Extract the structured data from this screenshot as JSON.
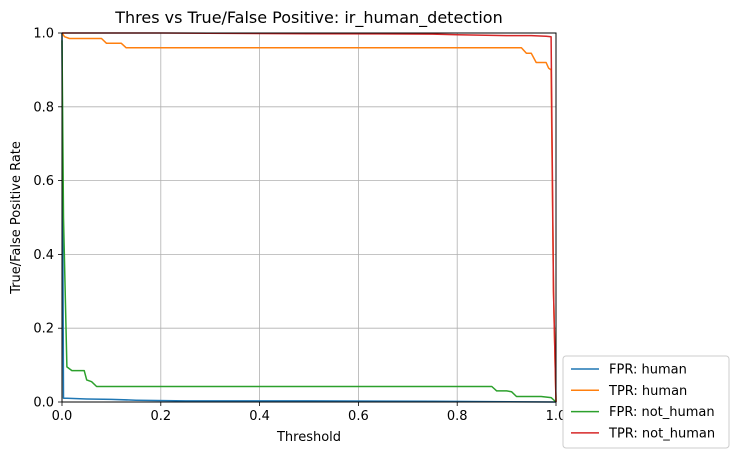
{
  "chart_data": {
    "type": "line",
    "title": "Thres vs True/False Positive: ir_human_detection",
    "xlabel": "Threshold",
    "ylabel": "True/False Positive Rate",
    "xlim": [
      0,
      1
    ],
    "ylim": [
      0,
      1
    ],
    "xticks": [
      "0.0",
      "0.2",
      "0.4",
      "0.6",
      "0.8",
      "1.0"
    ],
    "yticks": [
      "0.0",
      "0.2",
      "0.4",
      "0.6",
      "0.8",
      "1.0"
    ],
    "grid": true,
    "legend_position": "outside-lower-right",
    "series": [
      {
        "name": "FPR: human",
        "color": "#1f77b4",
        "x": [
          0.0,
          0.003,
          0.01,
          0.05,
          0.1,
          0.15,
          0.25,
          0.5,
          0.75,
          1.0
        ],
        "y": [
          1.0,
          0.01,
          0.01,
          0.008,
          0.007,
          0.005,
          0.003,
          0.003,
          0.002,
          0.0
        ]
      },
      {
        "name": "TPR: human",
        "color": "#ff7f0e",
        "x": [
          0.0,
          0.005,
          0.015,
          0.08,
          0.09,
          0.12,
          0.13,
          0.2,
          0.5,
          0.8,
          0.93,
          0.94,
          0.95,
          0.96,
          0.98,
          0.985,
          0.99,
          0.995,
          1.0
        ],
        "y": [
          1.0,
          0.99,
          0.985,
          0.985,
          0.972,
          0.972,
          0.96,
          0.96,
          0.96,
          0.96,
          0.96,
          0.945,
          0.945,
          0.92,
          0.92,
          0.905,
          0.9,
          0.3,
          0.0
        ]
      },
      {
        "name": "FPR: not_human",
        "color": "#2ca02c",
        "x": [
          0.0,
          0.003,
          0.01,
          0.02,
          0.045,
          0.05,
          0.06,
          0.07,
          0.1,
          0.5,
          0.87,
          0.88,
          0.9,
          0.91,
          0.92,
          0.93,
          0.97,
          0.99,
          1.0
        ],
        "y": [
          0.98,
          0.5,
          0.095,
          0.085,
          0.085,
          0.06,
          0.055,
          0.042,
          0.042,
          0.042,
          0.042,
          0.03,
          0.03,
          0.028,
          0.015,
          0.015,
          0.015,
          0.012,
          0.0
        ]
      },
      {
        "name": "TPR: not_human",
        "color": "#d62728",
        "x": [
          0.0,
          0.01,
          0.2,
          0.5,
          0.75,
          0.8,
          0.9,
          0.95,
          0.98,
          0.99,
          0.995,
          1.0
        ],
        "y": [
          1.0,
          1.0,
          1.0,
          0.998,
          0.997,
          0.995,
          0.993,
          0.993,
          0.991,
          0.99,
          0.3,
          0.0
        ]
      }
    ]
  }
}
